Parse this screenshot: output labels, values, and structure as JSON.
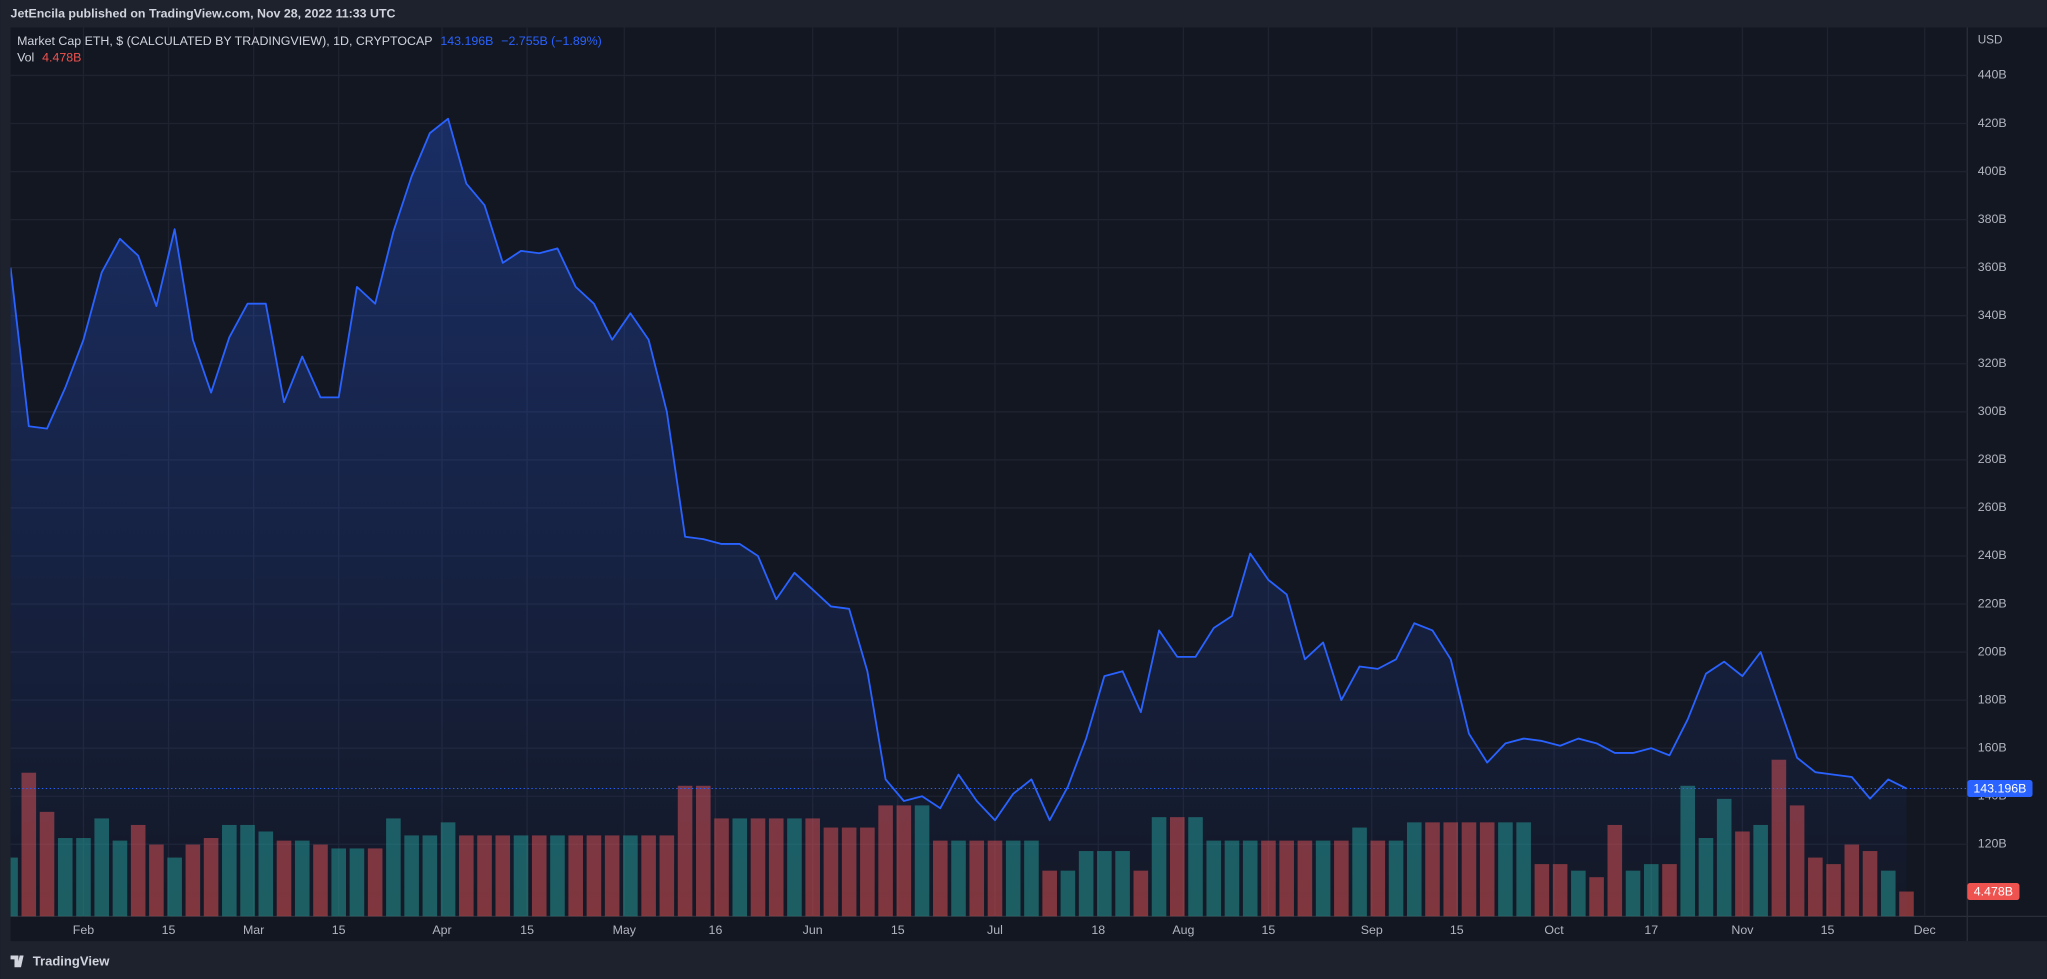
{
  "header": {
    "text": "JetEncila published on TradingView.com, Nov 28, 2022 11:33 UTC"
  },
  "footer": {
    "brand": "TradingView"
  },
  "chart_data": {
    "type": "line",
    "title": "Market Cap ETH, $ (CALCULATED BY TRADINGVIEW), 1D, CRYPTOCAP",
    "change_label": "−2.755B (−1.89%)",
    "currency": "USD",
    "x": [
      "2022-01-20",
      "2022-01-23",
      "2022-01-26",
      "2022-01-29",
      "2022-02-01",
      "2022-02-04",
      "2022-02-07",
      "2022-02-10",
      "2022-02-13",
      "2022-02-16",
      "2022-02-19",
      "2022-02-22",
      "2022-02-25",
      "2022-02-28",
      "2022-03-03",
      "2022-03-06",
      "2022-03-09",
      "2022-03-12",
      "2022-03-15",
      "2022-03-18",
      "2022-03-21",
      "2022-03-24",
      "2022-03-27",
      "2022-03-30",
      "2022-04-02",
      "2022-04-05",
      "2022-04-08",
      "2022-04-11",
      "2022-04-14",
      "2022-04-17",
      "2022-04-20",
      "2022-04-23",
      "2022-04-26",
      "2022-04-29",
      "2022-05-02",
      "2022-05-05",
      "2022-05-08",
      "2022-05-11",
      "2022-05-14",
      "2022-05-17",
      "2022-05-20",
      "2022-05-23",
      "2022-05-26",
      "2022-05-29",
      "2022-06-01",
      "2022-06-04",
      "2022-06-07",
      "2022-06-10",
      "2022-06-13",
      "2022-06-16",
      "2022-06-19",
      "2022-06-22",
      "2022-06-25",
      "2022-06-28",
      "2022-07-01",
      "2022-07-04",
      "2022-07-07",
      "2022-07-10",
      "2022-07-13",
      "2022-07-16",
      "2022-07-19",
      "2022-07-22",
      "2022-07-25",
      "2022-07-28",
      "2022-07-31",
      "2022-08-03",
      "2022-08-06",
      "2022-08-09",
      "2022-08-12",
      "2022-08-15",
      "2022-08-18",
      "2022-08-21",
      "2022-08-24",
      "2022-08-27",
      "2022-08-30",
      "2022-09-02",
      "2022-09-05",
      "2022-09-08",
      "2022-09-11",
      "2022-09-14",
      "2022-09-17",
      "2022-09-20",
      "2022-09-23",
      "2022-09-26",
      "2022-09-29",
      "2022-10-02",
      "2022-10-05",
      "2022-10-08",
      "2022-10-11",
      "2022-10-14",
      "2022-10-17",
      "2022-10-20",
      "2022-10-23",
      "2022-10-26",
      "2022-10-29",
      "2022-11-01",
      "2022-11-04",
      "2022-11-07",
      "2022-11-10",
      "2022-11-13",
      "2022-11-16",
      "2022-11-19",
      "2022-11-22",
      "2022-11-25",
      "2022-11-28"
    ],
    "series": [
      {
        "color": "#2962ff",
        "last_label": "143.196B",
        "values": [
          360,
          294,
          293,
          310,
          330,
          358,
          372,
          365,
          344,
          376,
          330,
          308,
          331,
          345,
          345,
          304,
          323,
          306,
          306,
          352,
          345,
          375,
          398,
          416,
          422,
          395,
          386,
          362,
          367,
          366,
          368,
          352,
          345,
          330,
          341,
          330,
          300,
          248,
          247,
          245,
          245,
          240,
          222,
          233,
          226,
          219,
          218,
          192,
          147,
          138,
          140,
          135,
          149,
          138,
          130,
          141,
          147,
          130,
          144,
          164,
          190,
          192,
          175,
          209,
          198,
          198,
          210,
          215,
          241,
          230,
          224,
          197,
          204,
          180,
          194,
          193,
          197,
          212,
          209,
          197,
          166,
          154,
          162,
          164,
          163,
          161,
          164,
          162,
          158,
          158,
          160,
          157,
          172,
          191,
          196,
          190,
          200,
          178,
          156,
          150,
          149,
          148,
          139,
          147,
          143.196
        ]
      }
    ],
    "volume": {
      "name": "Vol",
      "up_color": "#26a69a",
      "down_color": "#ef5350",
      "last_label": "4.478B",
      "values": [
        10.61,
        25.93,
        18.86,
        14.14,
        14.14,
        17.68,
        13.67,
        16.5,
        12.96,
        10.61,
        12.96,
        14.14,
        16.5,
        16.5,
        15.32,
        13.67,
        13.67,
        12.96,
        12.26,
        12.26,
        12.26,
        17.68,
        14.61,
        14.61,
        16.97,
        14.61,
        14.61,
        14.61,
        14.61,
        14.61,
        14.61,
        14.61,
        14.61,
        14.61,
        14.61,
        14.61,
        14.61,
        23.57,
        23.57,
        17.68,
        17.68,
        17.68,
        17.68,
        17.68,
        17.68,
        16.03,
        16.03,
        16.03,
        20.03,
        20.03,
        20.03,
        13.67,
        13.67,
        13.67,
        13.67,
        13.67,
        13.67,
        8.25,
        8.25,
        11.79,
        11.79,
        11.79,
        8.25,
        17.91,
        17.91,
        17.91,
        13.67,
        13.67,
        13.67,
        13.67,
        13.67,
        13.67,
        13.67,
        13.67,
        16.03,
        13.67,
        13.67,
        16.97,
        16.97,
        16.97,
        16.97,
        16.97,
        16.97,
        16.97,
        9.43,
        9.43,
        8.25,
        7.07,
        16.5,
        8.25,
        9.43,
        9.43,
        23.57,
        14.14,
        21.21,
        15.32,
        16.5,
        28.28,
        20.03,
        10.61,
        9.43,
        12.96,
        11.79,
        8.25,
        4.478
      ]
    },
    "xlim": [
      "2022-01-20",
      "2022-12-08"
    ],
    "xticks": [
      {
        "value": "2022-02-01",
        "label": "Feb"
      },
      {
        "value": "2022-02-15",
        "label": "15"
      },
      {
        "value": "2022-03-01",
        "label": "Mar"
      },
      {
        "value": "2022-03-15",
        "label": "15"
      },
      {
        "value": "2022-04-01",
        "label": "Apr"
      },
      {
        "value": "2022-04-15",
        "label": "15"
      },
      {
        "value": "2022-05-01",
        "label": "May"
      },
      {
        "value": "2022-05-16",
        "label": "16"
      },
      {
        "value": "2022-06-01",
        "label": "Jun"
      },
      {
        "value": "2022-06-15",
        "label": "15"
      },
      {
        "value": "2022-07-01",
        "label": "Jul"
      },
      {
        "value": "2022-07-18",
        "label": "18"
      },
      {
        "value": "2022-08-01",
        "label": "Aug"
      },
      {
        "value": "2022-08-15",
        "label": "15"
      },
      {
        "value": "2022-09-01",
        "label": "Sep"
      },
      {
        "value": "2022-09-15",
        "label": "15"
      },
      {
        "value": "2022-10-01",
        "label": "Oct"
      },
      {
        "value": "2022-10-17",
        "label": "17"
      },
      {
        "value": "2022-11-01",
        "label": "Nov"
      },
      {
        "value": "2022-11-15",
        "label": "15"
      },
      {
        "value": "2022-12-01",
        "label": "Dec"
      }
    ],
    "ylim": [
      90,
      460
    ],
    "yticks": [
      {
        "value": 120,
        "label": "120B"
      },
      {
        "value": 140,
        "label": "140B"
      },
      {
        "value": 160,
        "label": "160B"
      },
      {
        "value": 180,
        "label": "180B"
      },
      {
        "value": 200,
        "label": "200B"
      },
      {
        "value": 220,
        "label": "220B"
      },
      {
        "value": 240,
        "label": "240B"
      },
      {
        "value": 260,
        "label": "260B"
      },
      {
        "value": 280,
        "label": "280B"
      },
      {
        "value": 300,
        "label": "300B"
      },
      {
        "value": 320,
        "label": "320B"
      },
      {
        "value": 340,
        "label": "340B"
      },
      {
        "value": 360,
        "label": "360B"
      },
      {
        "value": 380,
        "label": "380B"
      },
      {
        "value": 400,
        "label": "400B"
      },
      {
        "value": 420,
        "label": "420B"
      },
      {
        "value": 440,
        "label": "440B"
      }
    ],
    "grid": true
  }
}
